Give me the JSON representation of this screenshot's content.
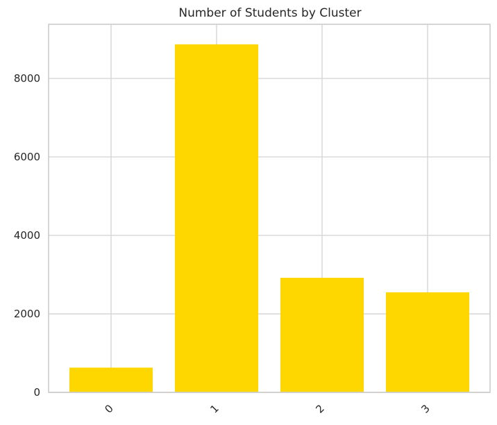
{
  "chart_data": {
    "type": "bar",
    "title": "Number of Students by Cluster",
    "xlabel": "",
    "ylabel": "",
    "categories": [
      "0",
      "1",
      "2",
      "3"
    ],
    "values": [
      630,
      8870,
      2920,
      2550
    ],
    "ylim": [
      0,
      9380
    ],
    "yticks": [
      0,
      2000,
      4000,
      6000,
      8000
    ],
    "x_tick_rotation_deg": 45,
    "grid": true,
    "legend": "none",
    "colors": {
      "bar": "#FFD700",
      "grid": "#D5D5D5",
      "axes_edge": "#CCCCCC",
      "text": "#262626",
      "background": "#FFFFFF"
    }
  }
}
